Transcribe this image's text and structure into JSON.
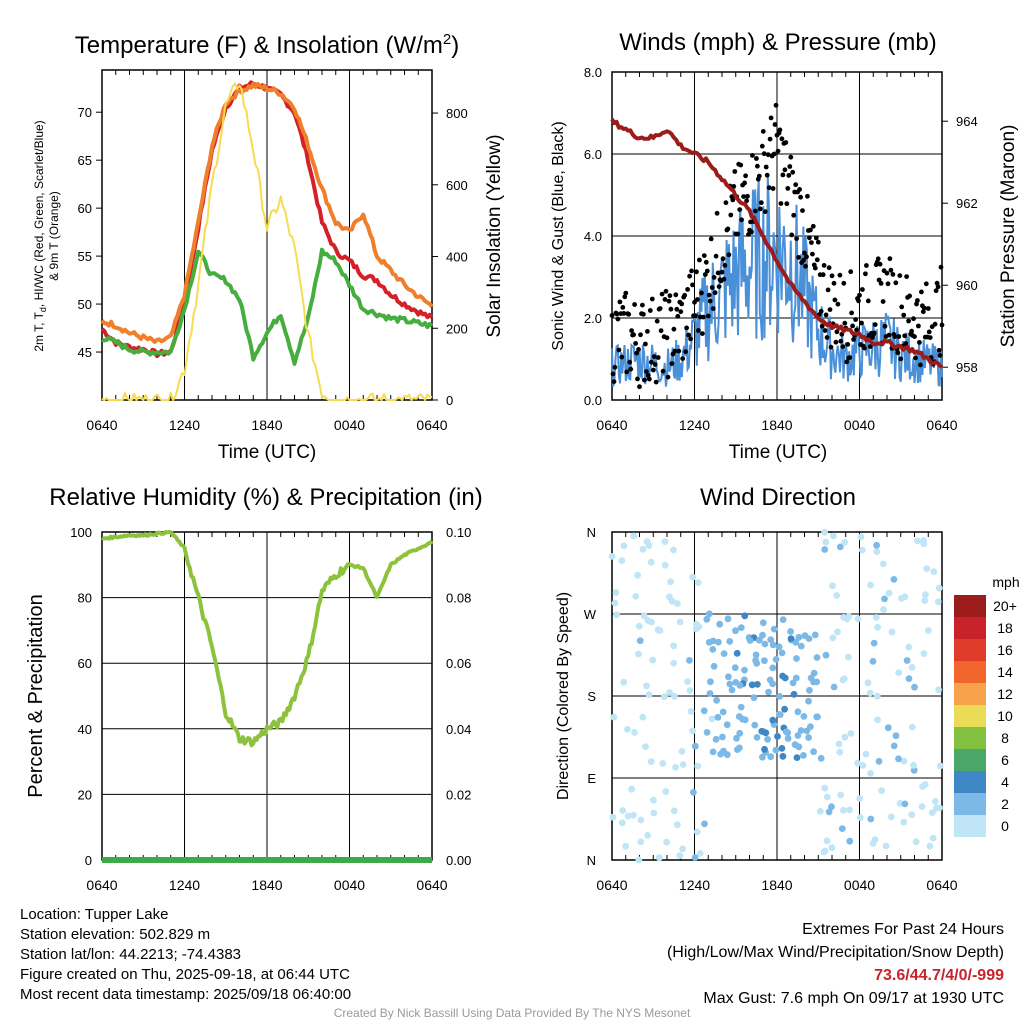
{
  "colors": {
    "red": "#d62028",
    "orange": "#f07f2c",
    "green": "#46ad3e",
    "yellow": "#f7dc52",
    "blue": "#4a90d9",
    "black": "#000000",
    "maroon": "#9c1b1b",
    "rh": "#8dc23c",
    "precip": "#3cab47"
  },
  "chart_data": [
    {
      "type": "line",
      "title": "Temperature (F) & Insolation (W/m²)",
      "xlabel": "Time (UTC)",
      "ylabel": "2m T, Td, HI/WC (Red, Green, Scarlet/Blue) & 9m T (Orange)",
      "ylabel2": "Solar Insolation (Yellow)",
      "x_ticks": [
        "0640",
        "1240",
        "1840",
        "0040",
        "0640"
      ],
      "ylim": [
        40,
        74.4
      ],
      "y_ticks": [
        45,
        50,
        55,
        60,
        65,
        70
      ],
      "y2lim": [
        0,
        920
      ],
      "y2_ticks": [
        0,
        200,
        400,
        600,
        800
      ],
      "hours": [
        0,
        1,
        2,
        3,
        4,
        5,
        6,
        7,
        8,
        9,
        10,
        11,
        12,
        13,
        14,
        15,
        16,
        17,
        18,
        19,
        20,
        21,
        22,
        23,
        24
      ],
      "series": [
        {
          "color": "red",
          "values": [
            47.4,
            46.0,
            45.5,
            45.3,
            44.8,
            45.0,
            50.0,
            58.0,
            66.0,
            70.5,
            72.5,
            73.0,
            72.5,
            71.8,
            70.0,
            65.0,
            58.5,
            55.5,
            54.5,
            53.0,
            52.5,
            51.0,
            50.0,
            49.2,
            48.5
          ]
        },
        {
          "color": "orange",
          "values": [
            48.2,
            47.8,
            47.0,
            46.5,
            46.0,
            46.5,
            51.0,
            58.5,
            66.5,
            71.0,
            72.2,
            72.8,
            72.5,
            72.0,
            70.5,
            66.5,
            62.0,
            58.5,
            57.5,
            59.5,
            55.0,
            53.5,
            52.0,
            50.8,
            49.8
          ]
        },
        {
          "color": "green",
          "values": [
            46.5,
            46.0,
            45.3,
            45.0,
            45.0,
            45.0,
            49.5,
            55.5,
            53.0,
            52.5,
            50.5,
            44.5,
            47.0,
            49.0,
            44.0,
            48.5,
            55.5,
            54.5,
            52.0,
            49.5,
            49.0,
            48.5,
            48.3,
            48.0,
            47.7
          ]
        },
        {
          "color": "yellow",
          "axis": "y2",
          "values": [
            0,
            0,
            0,
            0,
            0,
            0,
            85,
            320,
            600,
            820,
            890,
            700,
            480,
            560,
            420,
            180,
            20,
            0,
            0,
            0,
            0,
            0,
            0,
            0,
            0
          ]
        }
      ]
    },
    {
      "type": "scatter",
      "title": "Winds (mph) & Pressure (mb)",
      "xlabel": "Time (UTC)",
      "ylabel": "Sonic Wind & Gust (Blue, Black)",
      "ylabel2": "Station Pressure (Maroon)",
      "x_ticks": [
        "0640",
        "1240",
        "1840",
        "0040",
        "0640"
      ],
      "ylim": [
        0,
        8
      ],
      "y_ticks": [
        "0.0",
        "2.0",
        "4.0",
        "6.0",
        "8.0"
      ],
      "y2lim": [
        957.2,
        965.2
      ],
      "y2_ticks": [
        958,
        960,
        962,
        964
      ],
      "hours": [
        0,
        1,
        2,
        3,
        4,
        5,
        6,
        7,
        8,
        9,
        10,
        11,
        12,
        13,
        14,
        15,
        16,
        17,
        18,
        19,
        20,
        21,
        22,
        23,
        24
      ],
      "wind": [
        0.8,
        0.9,
        1.0,
        0.9,
        0.8,
        1.0,
        1.5,
        2.2,
        2.6,
        3.0,
        3.3,
        3.5,
        3.6,
        3.4,
        2.6,
        1.7,
        1.2,
        1.0,
        1.2,
        1.3,
        1.4,
        1.1,
        1.0,
        0.9,
        0.8
      ],
      "gust": [
        1.5,
        1.6,
        1.4,
        1.5,
        1.6,
        1.8,
        2.3,
        3.0,
        3.8,
        4.6,
        5.0,
        5.6,
        6.2,
        5.0,
        4.2,
        2.8,
        2.3,
        2.0,
        2.2,
        2.3,
        2.5,
        2.1,
        2.0,
        1.8,
        2.2
      ],
      "pressure": [
        964.0,
        963.8,
        963.6,
        963.6,
        963.8,
        963.4,
        963.2,
        963.0,
        962.6,
        962.2,
        961.8,
        961.2,
        960.6,
        960.0,
        959.6,
        959.2,
        959.0,
        958.9,
        958.8,
        958.6,
        958.6,
        958.5,
        958.4,
        958.2,
        958.0
      ],
      "max_gust": 7.6
    },
    {
      "type": "line",
      "title": "Relative Humidity (%) & Precipitation (in)",
      "xlabel": "",
      "ylabel": "Percent & Precipitation",
      "x_ticks": [
        "0640",
        "1240",
        "1840",
        "0040",
        "0640"
      ],
      "ylim": [
        0,
        100
      ],
      "y_ticks": [
        0,
        20,
        40,
        60,
        80,
        100
      ],
      "y2lim": [
        0,
        0.1
      ],
      "y2_ticks": [
        "0.00",
        "0.02",
        "0.04",
        "0.06",
        "0.08",
        "0.10"
      ],
      "hours": [
        0,
        1,
        2,
        3,
        4,
        5,
        6,
        7,
        8,
        9,
        10,
        11,
        12,
        13,
        14,
        15,
        16,
        17,
        18,
        19,
        20,
        21,
        22,
        23,
        24
      ],
      "series": [
        {
          "name": "rh",
          "color": "rh",
          "values": [
            98,
            98.5,
            99,
            99,
            99.5,
            100,
            95,
            80,
            65,
            45,
            37,
            36,
            40,
            42,
            50,
            62,
            82,
            87,
            90,
            89,
            80,
            90,
            93,
            95,
            97
          ]
        },
        {
          "name": "precip",
          "color": "precip",
          "axis": "y2",
          "values": [
            0,
            0,
            0,
            0,
            0,
            0,
            0,
            0,
            0,
            0,
            0,
            0,
            0,
            0,
            0,
            0,
            0,
            0,
            0,
            0,
            0,
            0,
            0,
            0,
            0
          ]
        }
      ]
    },
    {
      "type": "scatter",
      "title": "Wind Direction",
      "xlabel": "",
      "ylabel": "Direction (Colored By Speed)",
      "x_ticks": [
        "0640",
        "1240",
        "1840",
        "0040",
        "0640"
      ],
      "y_ticks": [
        "N",
        "E",
        "S",
        "W",
        "N"
      ],
      "ylim": [
        0,
        360
      ],
      "legend": {
        "title": "mph",
        "labels": [
          "20+",
          "18",
          "16",
          "14",
          "12",
          "10",
          "8",
          "6",
          "4",
          "2",
          "0"
        ],
        "colors": [
          "#9c1b1b",
          "#c8232b",
          "#e03c2b",
          "#f0662d",
          "#f7a14a",
          "#ebdc57",
          "#82c040",
          "#4aa669",
          "#3f86c4",
          "#7db9e6",
          "#bfe5f7"
        ]
      }
    }
  ],
  "titles": {
    "temp": "Temperature (F) & Insolation (W/m",
    "temp_sup": "2",
    "temp_close": ")",
    "winds": "Winds (mph) & Pressure (mb)",
    "rh": "Relative Humidity (%) & Precipitation (in)",
    "dir": "Wind Direction"
  },
  "axis_labels": {
    "time": "Time (UTC)",
    "temp_y_line1": "2m T, T",
    "temp_y_sub": "d",
    "temp_y_line1b": ", HI/WC (Red, Green, Scarlet/Blue)",
    "temp_y_line2": "& 9m T (Orange)",
    "solar": "Solar Insolation (Yellow)",
    "sonic": "Sonic Wind & Gust (Blue, Black)",
    "pressure": "Station Pressure (Maroon)",
    "percent": "Percent & Precipitation",
    "direction": "Direction (Colored By Speed)"
  },
  "info": {
    "location": "Location: Tupper Lake",
    "elevation": "Station elevation: 502.829 m",
    "latlon": "Station lat/lon: 44.2213; -74.4383",
    "created": "Figure created on Thu, 2025-09-18, at 06:44 UTC",
    "recent": "Most recent data timestamp: 2025/09/18 06:40:00"
  },
  "extremes": {
    "title": "Extremes For Past 24 Hours",
    "subtitle": "(High/Low/Max Wind/Precipitation/Snow Depth)",
    "values": "73.6/44.7/4/0/-999",
    "max_gust": "Max Gust: 7.6 mph On 09/17 at 1930 UTC"
  },
  "credit": "Created By Nick Bassill Using Data Provided By The NYS Mesonet"
}
